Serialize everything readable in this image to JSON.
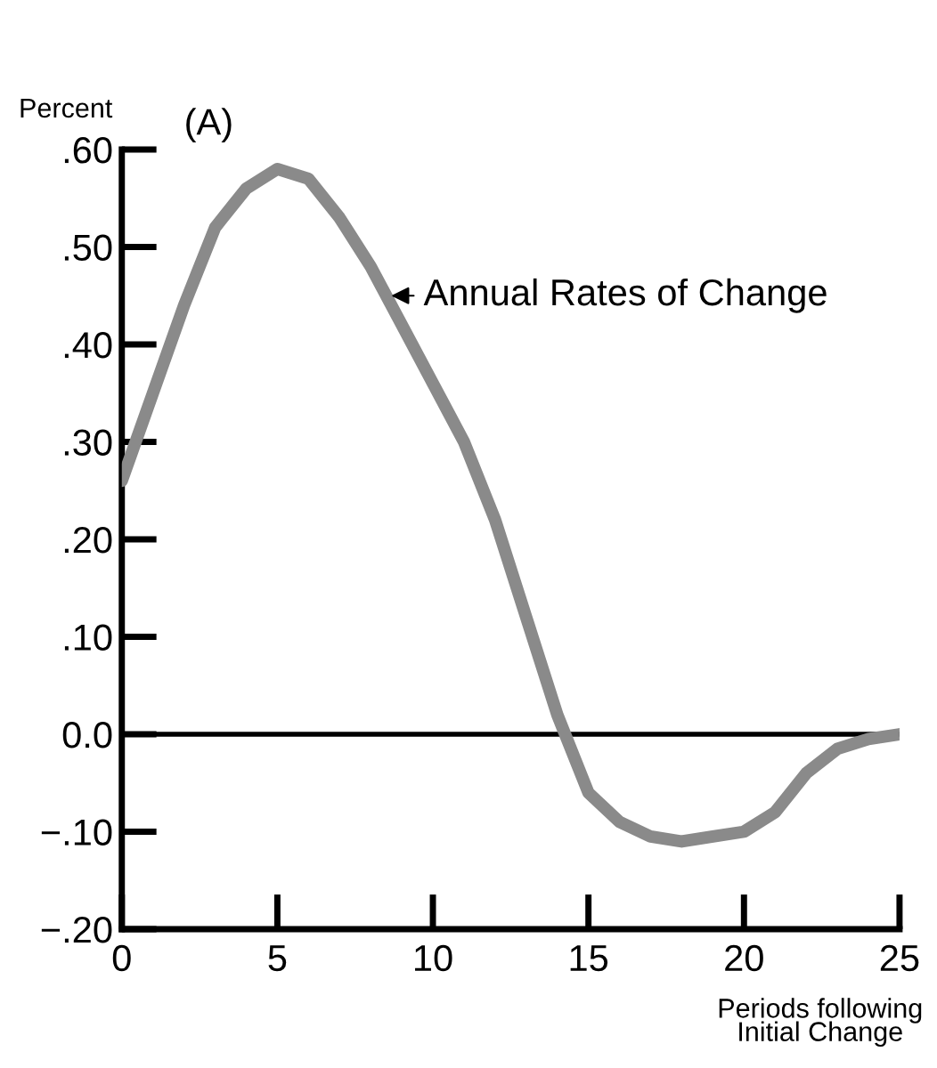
{
  "chart_data": {
    "type": "line",
    "title": "(A)",
    "ylabel": "Percent",
    "xlabel": "Periods following\nInitial Change",
    "x": [
      0,
      1,
      2,
      3,
      4,
      5,
      6,
      7,
      8,
      9,
      10,
      11,
      12,
      13,
      14,
      15,
      16,
      17,
      18,
      19,
      20,
      21,
      22,
      23,
      24,
      25
    ],
    "series": [
      {
        "color": "#8a8a8a",
        "values": [
          0.26,
          0.35,
          0.44,
          0.52,
          0.56,
          0.58,
          0.57,
          0.53,
          0.48,
          0.42,
          0.36,
          0.3,
          0.22,
          0.12,
          0.02,
          -0.06,
          -0.09,
          -0.105,
          -0.11,
          -0.105,
          -0.1,
          -0.08,
          -0.04,
          -0.015,
          -0.005,
          0.0
        ]
      }
    ],
    "xlim": [
      0,
      25
    ],
    "xticks": [
      0,
      5,
      10,
      15,
      20,
      25
    ],
    "ylim": [
      -0.2,
      0.6
    ],
    "yticks": [
      {
        "value": -0.2,
        "label": "−.20"
      },
      {
        "value": -0.1,
        "label": "−.10"
      },
      {
        "value": 0.0,
        "label": "0.0"
      },
      {
        "value": 0.1,
        "label": ".10"
      },
      {
        "value": 0.2,
        "label": ".20"
      },
      {
        "value": 0.3,
        "label": ".30"
      },
      {
        "value": 0.4,
        "label": ".40"
      },
      {
        "value": 0.5,
        "label": ".50"
      },
      {
        "value": 0.6,
        "label": ".60"
      }
    ],
    "ref_lines": [
      {
        "axis": "y",
        "value": 0.0,
        "color": "#000000"
      }
    ],
    "annotations": [
      {
        "text": "Annual Rates of Change",
        "x": 8.5,
        "y": 0.45
      }
    ],
    "grid": false,
    "legend": false,
    "marker": "none",
    "line_style": "solid"
  }
}
